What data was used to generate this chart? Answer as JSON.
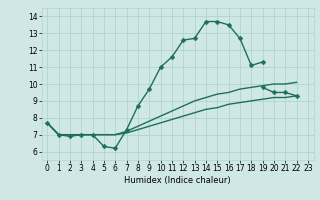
{
  "title": "",
  "xlabel": "Humidex (Indice chaleur)",
  "ylabel": "",
  "xlim": [
    -0.5,
    23.5
  ],
  "ylim": [
    5.5,
    14.5
  ],
  "xticks": [
    0,
    1,
    2,
    3,
    4,
    5,
    6,
    7,
    8,
    9,
    10,
    11,
    12,
    13,
    14,
    15,
    16,
    17,
    18,
    19,
    20,
    21,
    22,
    23
  ],
  "yticks": [
    6,
    7,
    8,
    9,
    10,
    11,
    12,
    13,
    14
  ],
  "bg_color": "#cfe8e5",
  "grid_color": "#b0d4d0",
  "line_color": "#1e6e60",
  "line_width": 1.0,
  "marker": "D",
  "marker_size": 2.5,
  "lines": [
    {
      "x": [
        0,
        1,
        2,
        3,
        4,
        5,
        6,
        7,
        8,
        9,
        10,
        11,
        12,
        13,
        14,
        15,
        16,
        17,
        18,
        19
      ],
      "y": [
        7.7,
        7.0,
        6.9,
        7.0,
        7.0,
        6.3,
        6.2,
        7.3,
        8.7,
        9.7,
        11.0,
        11.6,
        12.6,
        12.7,
        13.7,
        13.7,
        13.5,
        12.7,
        11.1,
        11.3
      ],
      "has_markers": true
    },
    {
      "x": [
        19,
        20,
        21,
        22
      ],
      "y": [
        9.8,
        9.5,
        9.5,
        9.3
      ],
      "has_markers": true
    },
    {
      "x": [
        0,
        1,
        2,
        3,
        4,
        5,
        6,
        7,
        8,
        9,
        10,
        11,
        12,
        13,
        14,
        15,
        16,
        17,
        18,
        19,
        20,
        21,
        22
      ],
      "y": [
        7.7,
        7.0,
        7.0,
        7.0,
        7.0,
        7.0,
        7.0,
        7.2,
        7.5,
        7.8,
        8.1,
        8.4,
        8.7,
        9.0,
        9.2,
        9.4,
        9.5,
        9.7,
        9.8,
        9.9,
        10.0,
        10.0,
        10.1
      ],
      "has_markers": false
    },
    {
      "x": [
        0,
        1,
        2,
        3,
        4,
        5,
        6,
        7,
        8,
        9,
        10,
        11,
        12,
        13,
        14,
        15,
        16,
        17,
        18,
        19,
        20,
        21,
        22
      ],
      "y": [
        7.7,
        7.0,
        7.0,
        7.0,
        7.0,
        7.0,
        7.0,
        7.1,
        7.3,
        7.5,
        7.7,
        7.9,
        8.1,
        8.3,
        8.5,
        8.6,
        8.8,
        8.9,
        9.0,
        9.1,
        9.2,
        9.2,
        9.3
      ],
      "has_markers": false
    }
  ]
}
